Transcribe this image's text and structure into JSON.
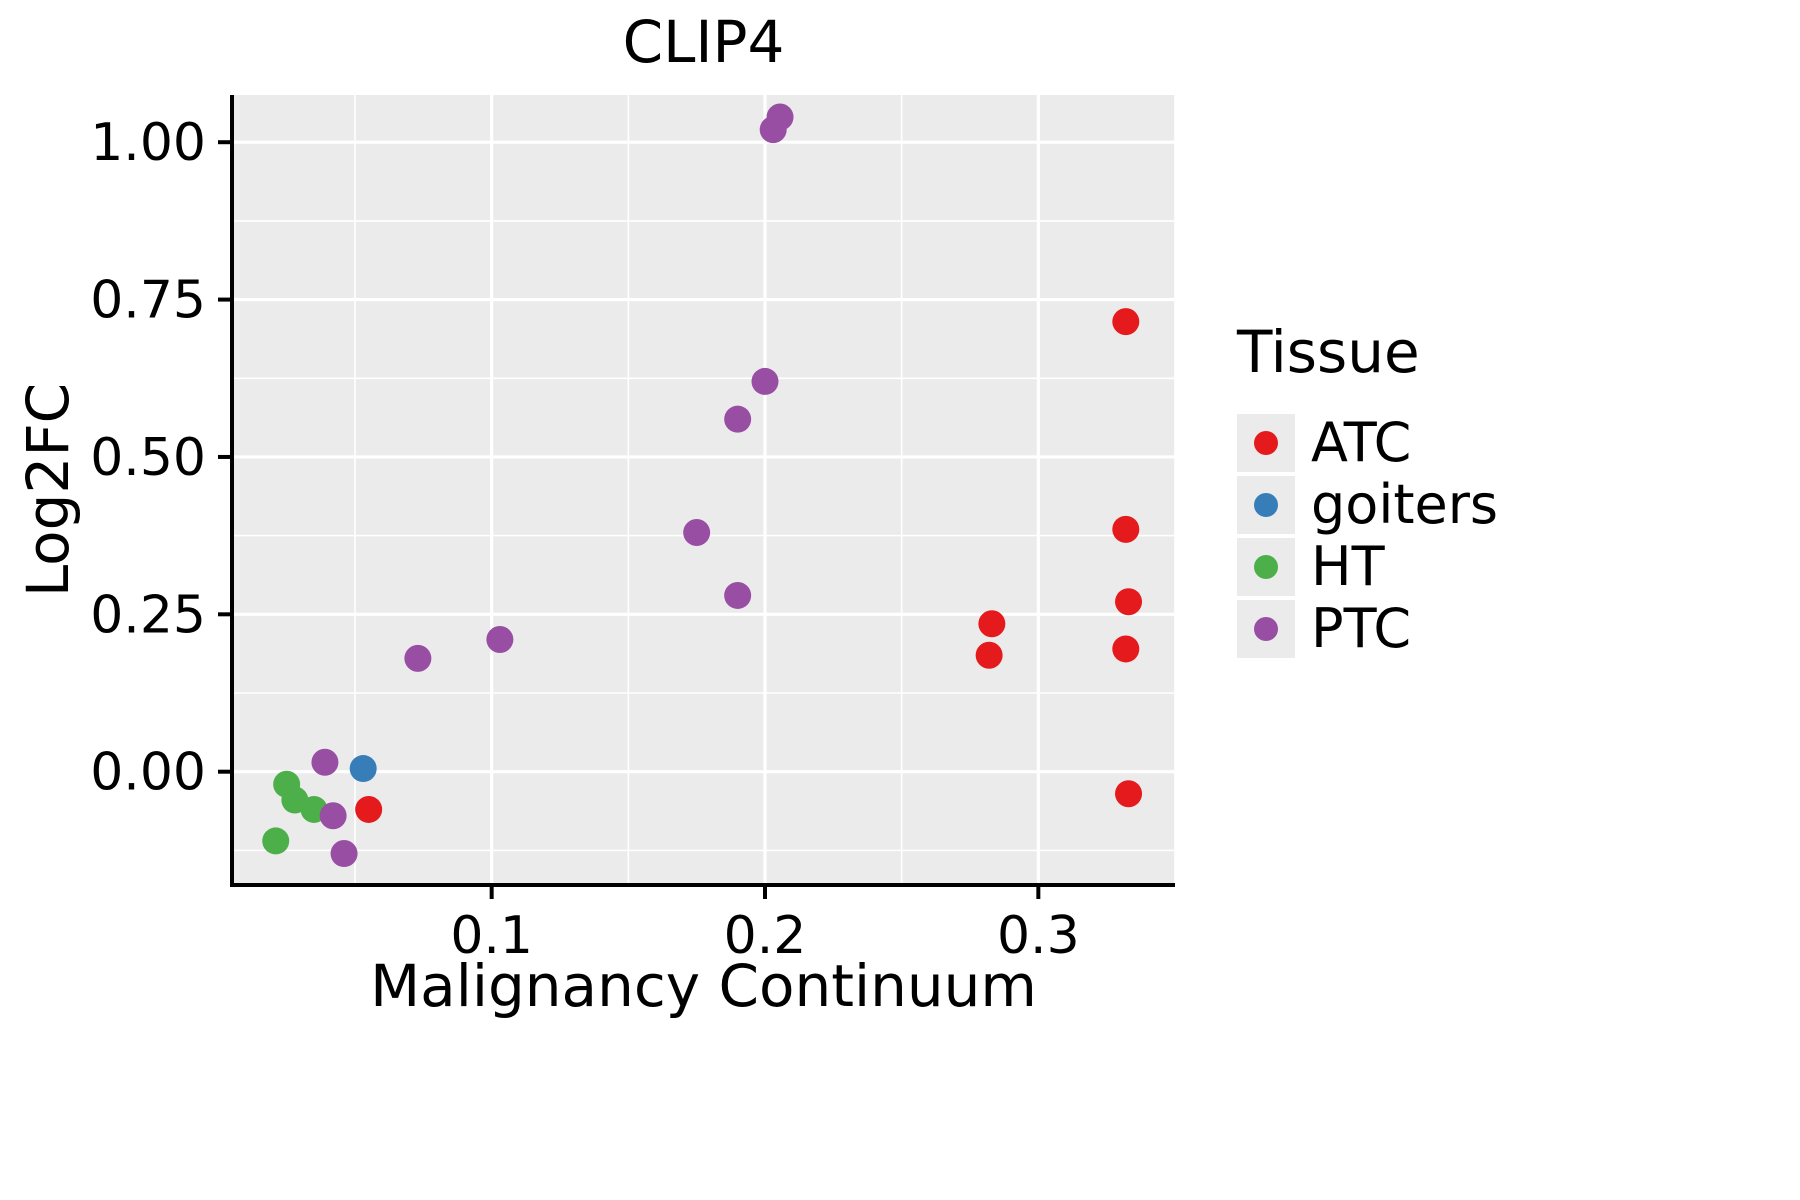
{
  "figure": {
    "title": "CLIP4"
  },
  "axes": {
    "x_label": "Malignancy Continuum",
    "y_label": "Log2FC"
  },
  "legend": {
    "title": "Tissue"
  },
  "chart_data": {
    "type": "scatter",
    "title": "CLIP4",
    "xlabel": "Malignancy Continuum",
    "ylabel": "Log2FC",
    "xlim": [
      0.005,
      0.35
    ],
    "ylim": [
      -0.18,
      1.075
    ],
    "grid": true,
    "legend_position": "right",
    "panel_bg": "#EBEBEB",
    "grid_color": "#FFFFFF",
    "axis_color": "#000000",
    "x_ticks": [
      {
        "value": 0.1,
        "label": "0.1"
      },
      {
        "value": 0.2,
        "label": "0.2"
      },
      {
        "value": 0.3,
        "label": "0.3"
      }
    ],
    "y_ticks": [
      {
        "value": 0.0,
        "label": "0.00"
      },
      {
        "value": 0.25,
        "label": "0.25"
      },
      {
        "value": 0.5,
        "label": "0.50"
      },
      {
        "value": 0.75,
        "label": "0.75"
      },
      {
        "value": 1.0,
        "label": "1.00"
      }
    ],
    "x_minor": [
      0.05,
      0.15,
      0.25,
      0.35
    ],
    "y_minor": [
      -0.125,
      0.125,
      0.375,
      0.625,
      0.875
    ],
    "series": [
      {
        "name": "ATC",
        "color": "#E41A1C",
        "points": [
          [
            0.055,
            -0.06
          ],
          [
            0.282,
            0.185
          ],
          [
            0.283,
            0.235
          ],
          [
            0.332,
            0.715
          ],
          [
            0.332,
            0.385
          ],
          [
            0.333,
            0.27
          ],
          [
            0.332,
            0.195
          ],
          [
            0.333,
            -0.035
          ]
        ]
      },
      {
        "name": "goiters",
        "color": "#377EB8",
        "points": [
          [
            0.053,
            0.005
          ]
        ]
      },
      {
        "name": "HT",
        "color": "#4DAF4A",
        "points": [
          [
            0.021,
            -0.11
          ],
          [
            0.025,
            -0.02
          ],
          [
            0.028,
            -0.045
          ],
          [
            0.035,
            -0.06
          ]
        ]
      },
      {
        "name": "PTC",
        "color": "#984EA3",
        "points": [
          [
            0.039,
            0.015
          ],
          [
            0.042,
            -0.07
          ],
          [
            0.046,
            -0.13
          ],
          [
            0.073,
            0.18
          ],
          [
            0.103,
            0.21
          ],
          [
            0.175,
            0.38
          ],
          [
            0.19,
            0.28
          ],
          [
            0.19,
            0.56
          ],
          [
            0.2,
            0.62
          ],
          [
            0.203,
            1.02
          ],
          [
            0.2055,
            1.04
          ]
        ]
      }
    ]
  }
}
